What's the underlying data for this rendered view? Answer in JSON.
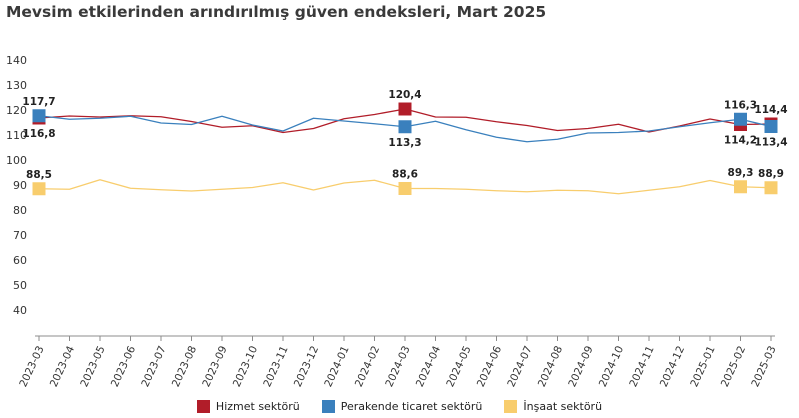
{
  "chart_data": {
    "type": "line",
    "title": "Mevsim etkilerinden arındırılmış güven endeksleri, Mart 2025",
    "xlabel": "",
    "ylabel": "",
    "ylim": [
      40,
      140
    ],
    "yticks": [
      "40",
      "50",
      "60",
      "70",
      "80",
      "90",
      "100",
      "110",
      "120",
      "130",
      "140"
    ],
    "grid": false,
    "legend_position": "bottom",
    "categories": [
      "2023-03",
      "2023-04",
      "2023-05",
      "2023-06",
      "2023-07",
      "2023-08",
      "2023-09",
      "2023-10",
      "2023-11",
      "2023-12",
      "2024-01",
      "2024-02",
      "2024-03",
      "2024-04",
      "2024-05",
      "2024-06",
      "2024-07",
      "2024-08",
      "2024-09",
      "2024-10",
      "2024-11",
      "2024-12",
      "2025-01",
      "2025-02",
      "2025-03"
    ],
    "series": [
      {
        "name": "Hizmet sektörü",
        "color": "#b11d29",
        "values": [
          116.8,
          117.6,
          117.2,
          117.7,
          117.3,
          115.4,
          113.1,
          113.7,
          111.0,
          112.6,
          116.5,
          118.2,
          120.4,
          117.2,
          117.1,
          115.3,
          113.8,
          111.8,
          112.6,
          114.3,
          111.2,
          113.6,
          116.4,
          114.2,
          114.4
        ],
        "markers": [
          0,
          12,
          23,
          24
        ],
        "labels": [
          {
            "index": 0,
            "text": "116,8",
            "pos": "below"
          },
          {
            "index": 12,
            "text": "120,4",
            "pos": "above"
          },
          {
            "index": 23,
            "text": "114,2",
            "pos": "below"
          },
          {
            "index": 24,
            "text": "114,4",
            "pos": "above"
          }
        ]
      },
      {
        "name": "Perakende ticaret sektörü",
        "color": "#3a80bd",
        "values": [
          117.7,
          116.3,
          116.7,
          117.5,
          114.8,
          114.2,
          117.5,
          114.0,
          111.6,
          116.7,
          115.6,
          114.5,
          113.3,
          115.5,
          112.1,
          109.1,
          107.3,
          108.3,
          110.8,
          111.0,
          111.6,
          113.3,
          114.9,
          116.3,
          113.4
        ],
        "markers": [
          0,
          12,
          23,
          24
        ],
        "labels": [
          {
            "index": 0,
            "text": "117,7",
            "pos": "above"
          },
          {
            "index": 12,
            "text": "113,3",
            "pos": "below"
          },
          {
            "index": 23,
            "text": "116,3",
            "pos": "above"
          },
          {
            "index": 24,
            "text": "113,4",
            "pos": "below"
          }
        ]
      },
      {
        "name": "İnşaat sektörü",
        "color": "#f8cd6d",
        "values": [
          88.5,
          88.3,
          92.1,
          88.7,
          88.1,
          87.6,
          88.3,
          89.0,
          90.9,
          88.0,
          90.8,
          91.9,
          88.6,
          88.6,
          88.3,
          87.7,
          87.3,
          87.9,
          87.7,
          86.5,
          87.9,
          89.3,
          91.8,
          89.3,
          88.9
        ],
        "markers": [
          0,
          12,
          23,
          24
        ],
        "labels": [
          {
            "index": 0,
            "text": "88,5",
            "pos": "above"
          },
          {
            "index": 12,
            "text": "88,6",
            "pos": "above"
          },
          {
            "index": 23,
            "text": "89,3",
            "pos": "above"
          },
          {
            "index": 24,
            "text": "88,9",
            "pos": "above"
          }
        ]
      }
    ]
  }
}
